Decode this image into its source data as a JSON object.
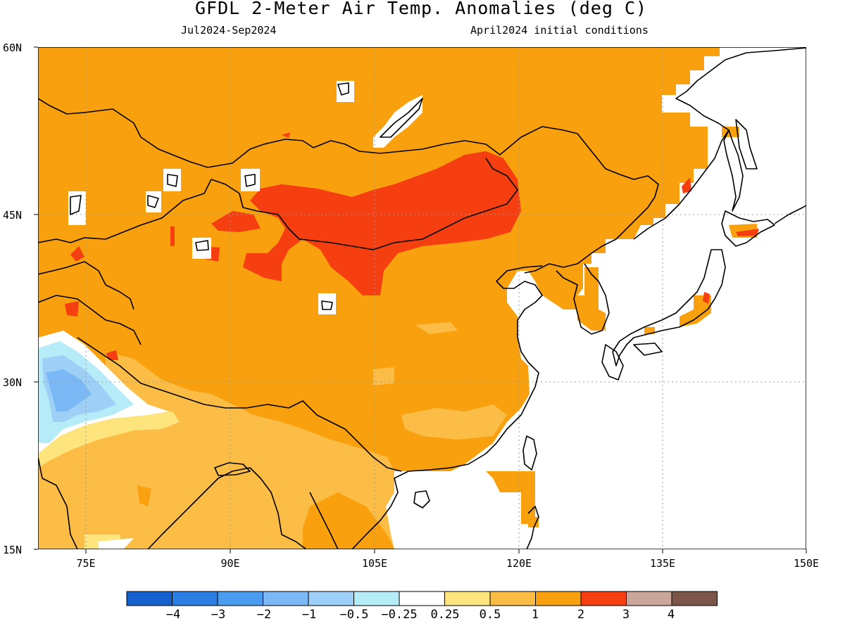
{
  "title": "GFDL 2-Meter Air Temp. Anomalies (deg C)",
  "period": "Jul2024-Sep2024",
  "init": "April2024 initial conditions",
  "map": {
    "lat_labels": [
      "60N",
      "45N",
      "30N",
      "15N"
    ],
    "lon_labels": [
      "75E",
      "90E",
      "105E",
      "120E",
      "135E",
      "150E"
    ],
    "lat_range": [
      15,
      60
    ],
    "lon_range": [
      70,
      150
    ]
  },
  "colorbar": {
    "labels": [
      "-4",
      "-3",
      "-2",
      "-1",
      "-0.5",
      "-0.25",
      "0.25",
      "0.5",
      "1",
      "2",
      "3",
      "4"
    ],
    "colors": [
      "#1560cf",
      "#2a7ee3",
      "#4a9cf0",
      "#7ab9f5",
      "#9ed0f7",
      "#b6ecf8",
      "#ffffff",
      "#fde47c",
      "#fbbd45",
      "#f8a00d",
      "#f53f10",
      "#caa59a",
      "#7b5548"
    ]
  },
  "colors": {
    "anom_1_2": "#f8a00d",
    "anom_2_3": "#f53f10",
    "anom_05_1": "#fbbd45",
    "anom_025_05": "#fde47c",
    "anom_neg": "#9ed0f7"
  }
}
